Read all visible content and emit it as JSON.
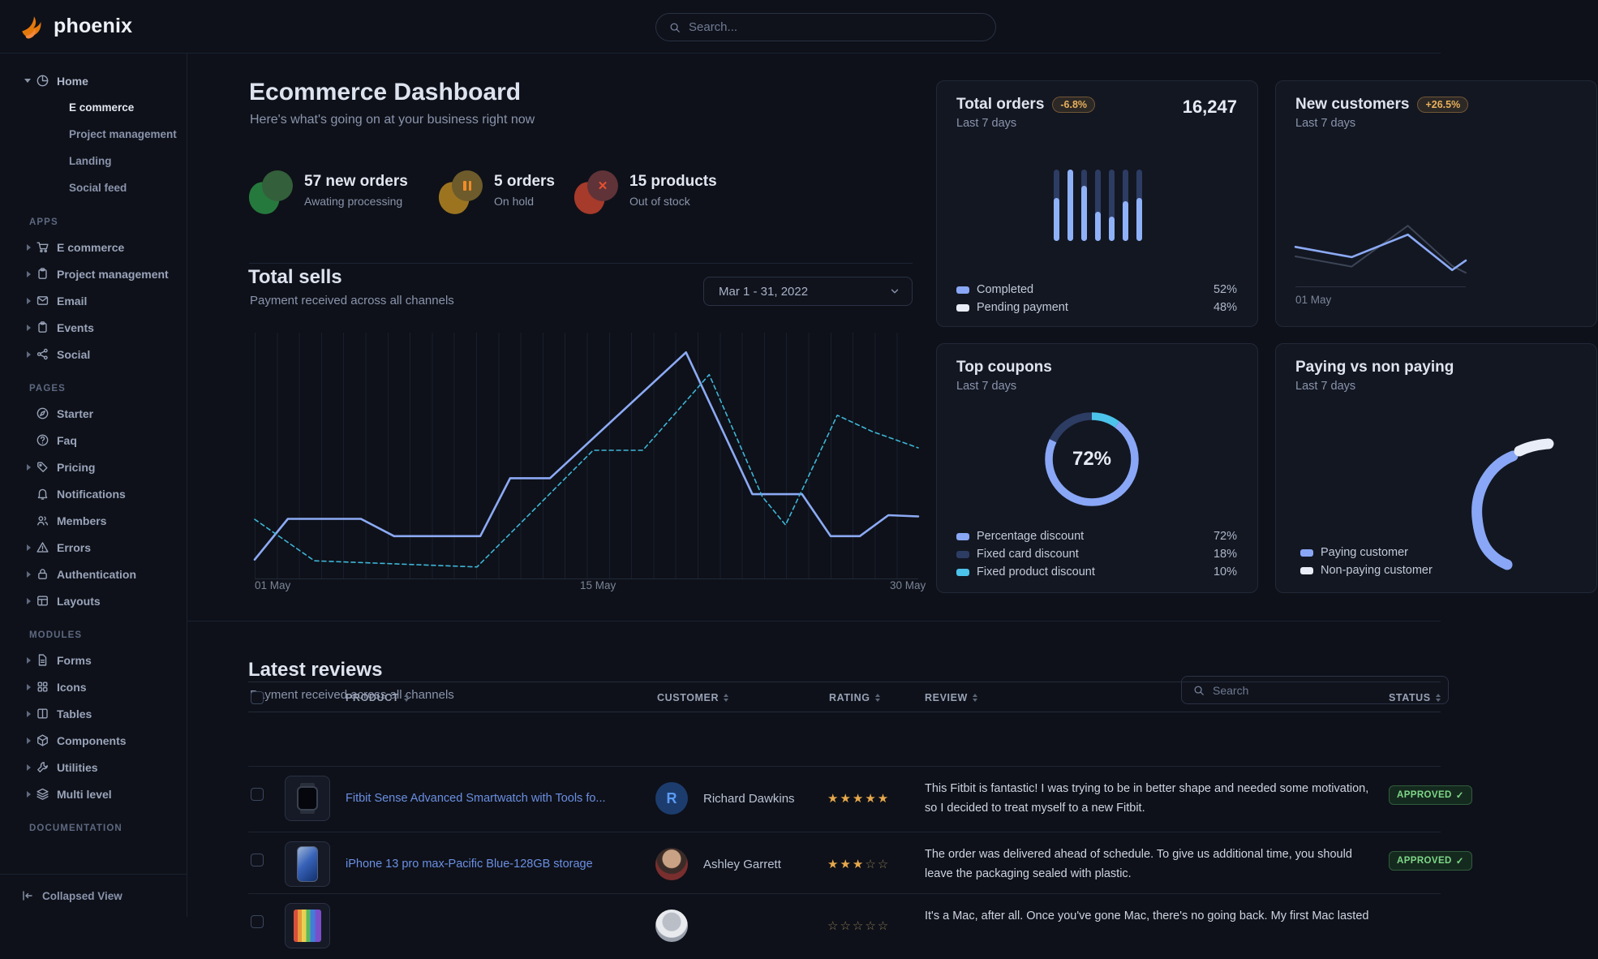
{
  "navbar": {
    "brand": "phoenix",
    "search_placeholder": "Search..."
  },
  "sidebar": {
    "home": {
      "label": "Home",
      "icon": "pie-chart-icon",
      "children": [
        {
          "label": "E commerce",
          "active": true
        },
        {
          "label": "Project management",
          "active": false
        },
        {
          "label": "Landing",
          "active": false
        },
        {
          "label": "Social feed",
          "active": false
        }
      ]
    },
    "sections": [
      {
        "label": "APPS",
        "items": [
          {
            "label": "E commerce",
            "icon": "cart-icon",
            "caret": true
          },
          {
            "label": "Project management",
            "icon": "clipboard-icon",
            "caret": true
          },
          {
            "label": "Email",
            "icon": "mail-icon",
            "caret": true
          },
          {
            "label": "Events",
            "icon": "clipboard-icon",
            "caret": true
          },
          {
            "label": "Social",
            "icon": "share-icon",
            "caret": true
          }
        ]
      },
      {
        "label": "PAGES",
        "items": [
          {
            "label": "Starter",
            "icon": "compass-icon",
            "caret": false
          },
          {
            "label": "Faq",
            "icon": "help-icon",
            "caret": false
          },
          {
            "label": "Pricing",
            "icon": "tag-icon",
            "caret": true
          },
          {
            "label": "Notifications",
            "icon": "bell-icon",
            "caret": false
          },
          {
            "label": "Members",
            "icon": "users-icon",
            "caret": false
          },
          {
            "label": "Errors",
            "icon": "alert-icon",
            "caret": true
          },
          {
            "label": "Authentication",
            "icon": "lock-icon",
            "caret": true
          },
          {
            "label": "Layouts",
            "icon": "layout-icon",
            "caret": true
          }
        ]
      },
      {
        "label": "MODULES",
        "items": [
          {
            "label": "Forms",
            "icon": "file-icon",
            "caret": true
          },
          {
            "label": "Icons",
            "icon": "grid-icon",
            "caret": true
          },
          {
            "label": "Tables",
            "icon": "columns-icon",
            "caret": true
          },
          {
            "label": "Components",
            "icon": "box-icon",
            "caret": true
          },
          {
            "label": "Utilities",
            "icon": "wrench-icon",
            "caret": true
          },
          {
            "label": "Multi level",
            "icon": "layers-icon",
            "caret": true
          }
        ]
      },
      {
        "label": "DOCUMENTATION",
        "items": []
      }
    ],
    "footer": {
      "label": "Collapsed View",
      "icon": "collapse-left-icon"
    }
  },
  "dashboard": {
    "title": "Ecommerce Dashboard",
    "subtitle": "Here's what's going on at your business right now",
    "stats": [
      {
        "value": "57 new orders",
        "caption": "Awating processing",
        "tone": "success"
      },
      {
        "value": "5 orders",
        "caption": "On hold",
        "tone": "warning"
      },
      {
        "value": "15 products",
        "caption": "Out of stock",
        "tone": "danger"
      }
    ],
    "total_sells": {
      "title": "Total sells",
      "subtitle": "Payment received across all channels",
      "range": "Mar 1 - 31, 2022",
      "x_labels": [
        "01 May",
        "15 May",
        "30 May"
      ],
      "series": [
        {
          "name": "current",
          "color": "#8caaf5",
          "width": 2.6,
          "dash": false,
          "points": [
            [
              0,
              0.92
            ],
            [
              0.05,
              0.755
            ],
            [
              0.16,
              0.755
            ],
            [
              0.21,
              0.825
            ],
            [
              0.34,
              0.825
            ],
            [
              0.385,
              0.59
            ],
            [
              0.445,
              0.59
            ],
            [
              0.65,
              0.08
            ],
            [
              0.75,
              0.655
            ],
            [
              0.825,
              0.655
            ],
            [
              0.868,
              0.825
            ],
            [
              0.912,
              0.825
            ],
            [
              0.955,
              0.74
            ],
            [
              1,
              0.745
            ]
          ]
        },
        {
          "name": "previous",
          "color": "#3eb5d8",
          "width": 1.6,
          "dash": true,
          "points": [
            [
              0,
              0.757
            ],
            [
              0.09,
              0.925
            ],
            [
              0.335,
              0.95
            ],
            [
              0.51,
              0.477
            ],
            [
              0.585,
              0.477
            ],
            [
              0.685,
              0.17
            ],
            [
              0.765,
              0.665
            ],
            [
              0.8,
              0.78
            ],
            [
              0.878,
              0.335
            ],
            [
              0.93,
              0.4
            ],
            [
              1,
              0.467
            ]
          ]
        }
      ]
    },
    "cards": {
      "total_orders": {
        "title": "Total orders",
        "badge": "-6.8%",
        "period": "Last 7 days",
        "value": "16,247",
        "bars": [
          60,
          100,
          77,
          41,
          34,
          56,
          60
        ],
        "legend": [
          {
            "label": "Completed",
            "value": "52%",
            "color": "#89a7f6"
          },
          {
            "label": "Pending payment",
            "value": "48%",
            "color": "#e9edf8"
          }
        ]
      },
      "new_customers": {
        "title": "New customers",
        "badge": "+26.5%",
        "period": "Last 7 days",
        "x_label": "01 May",
        "series": [
          {
            "name": "previous",
            "color": "#3c4456",
            "width": 2,
            "dash": false,
            "points": [
              [
                0,
                0.56
              ],
              [
                0.33,
                0.71
              ],
              [
                0.66,
                0.11
              ],
              [
                0.92,
                0.7
              ],
              [
                1,
                0.8
              ]
            ]
          },
          {
            "name": "current",
            "color": "#8caaf5",
            "width": 2.6,
            "dash": false,
            "points": [
              [
                0,
                0.42
              ],
              [
                0.33,
                0.57
              ],
              [
                0.66,
                0.24
              ],
              [
                0.92,
                0.76
              ],
              [
                1,
                0.62
              ]
            ]
          }
        ]
      },
      "top_coupons": {
        "title": "Top coupons",
        "period": "Last 7 days",
        "center_label": "72%",
        "ring": [
          {
            "value": 10,
            "color": "#4cc3ea"
          },
          {
            "value": 72,
            "color": "#89a7f6"
          },
          {
            "value": 18,
            "color": "#2d3c63"
          }
        ],
        "legend": [
          {
            "label": "Percentage discount",
            "value": "72%",
            "color": "#89a7f6"
          },
          {
            "label": "Fixed card discount",
            "value": "18%",
            "color": "#2d3c63"
          },
          {
            "label": "Fixed product discount",
            "value": "10%",
            "color": "#4cc3ea"
          }
        ]
      },
      "paying": {
        "title": "Paying vs non paying",
        "period": "Last 7 days",
        "legend": [
          {
            "label": "Paying customer",
            "value": "",
            "color": "#89a7f6"
          },
          {
            "label": "Non-paying customer",
            "value": "",
            "color": "#e9edf8"
          }
        ]
      }
    }
  },
  "reviews": {
    "title": "Latest reviews",
    "subtitle": "Payment received across all channels",
    "search_placeholder": "Search",
    "check": "✓",
    "columns": {
      "product": "PRODUCT",
      "customer": "CUSTOMER",
      "rating": "RATING",
      "review": "REVIEW",
      "status": "STATUS"
    },
    "rows": [
      {
        "product": "Fitbit Sense Advanced Smartwatch with Tools fo...",
        "thumb": "watch",
        "customer": "Richard Dawkins",
        "avatar": {
          "type": "initial",
          "text": "R"
        },
        "stars_filled": "★★★★★",
        "stars_empty": "",
        "review_lines": [
          "This Fitbit is fantastic! I was trying to be in better shape and needed some motivation,",
          "so I decided to treat myself to a new Fitbit."
        ],
        "status": "APPROVED"
      },
      {
        "product": "iPhone 13 pro max-Pacific Blue-128GB storage",
        "thumb": "iphone",
        "customer": "Ashley Garrett",
        "avatar": {
          "type": "photo-a",
          "text": ""
        },
        "stars_filled": "★★★",
        "stars_empty": "☆☆",
        "review_lines": [
          "The order was delivered ahead of schedule. To give us additional time, you should",
          "leave the packaging sealed with plastic."
        ],
        "status": "APPROVED"
      },
      {
        "product": "",
        "thumb": "macbook",
        "customer": "",
        "avatar": {
          "type": "photo-b",
          "text": ""
        },
        "stars_filled": "",
        "stars_empty": "☆☆☆☆☆",
        "review_lines": [
          "It's a Mac, after all. Once you've gone Mac, there's no going back. My first Mac lasted"
        ],
        "status": ""
      }
    ]
  }
}
